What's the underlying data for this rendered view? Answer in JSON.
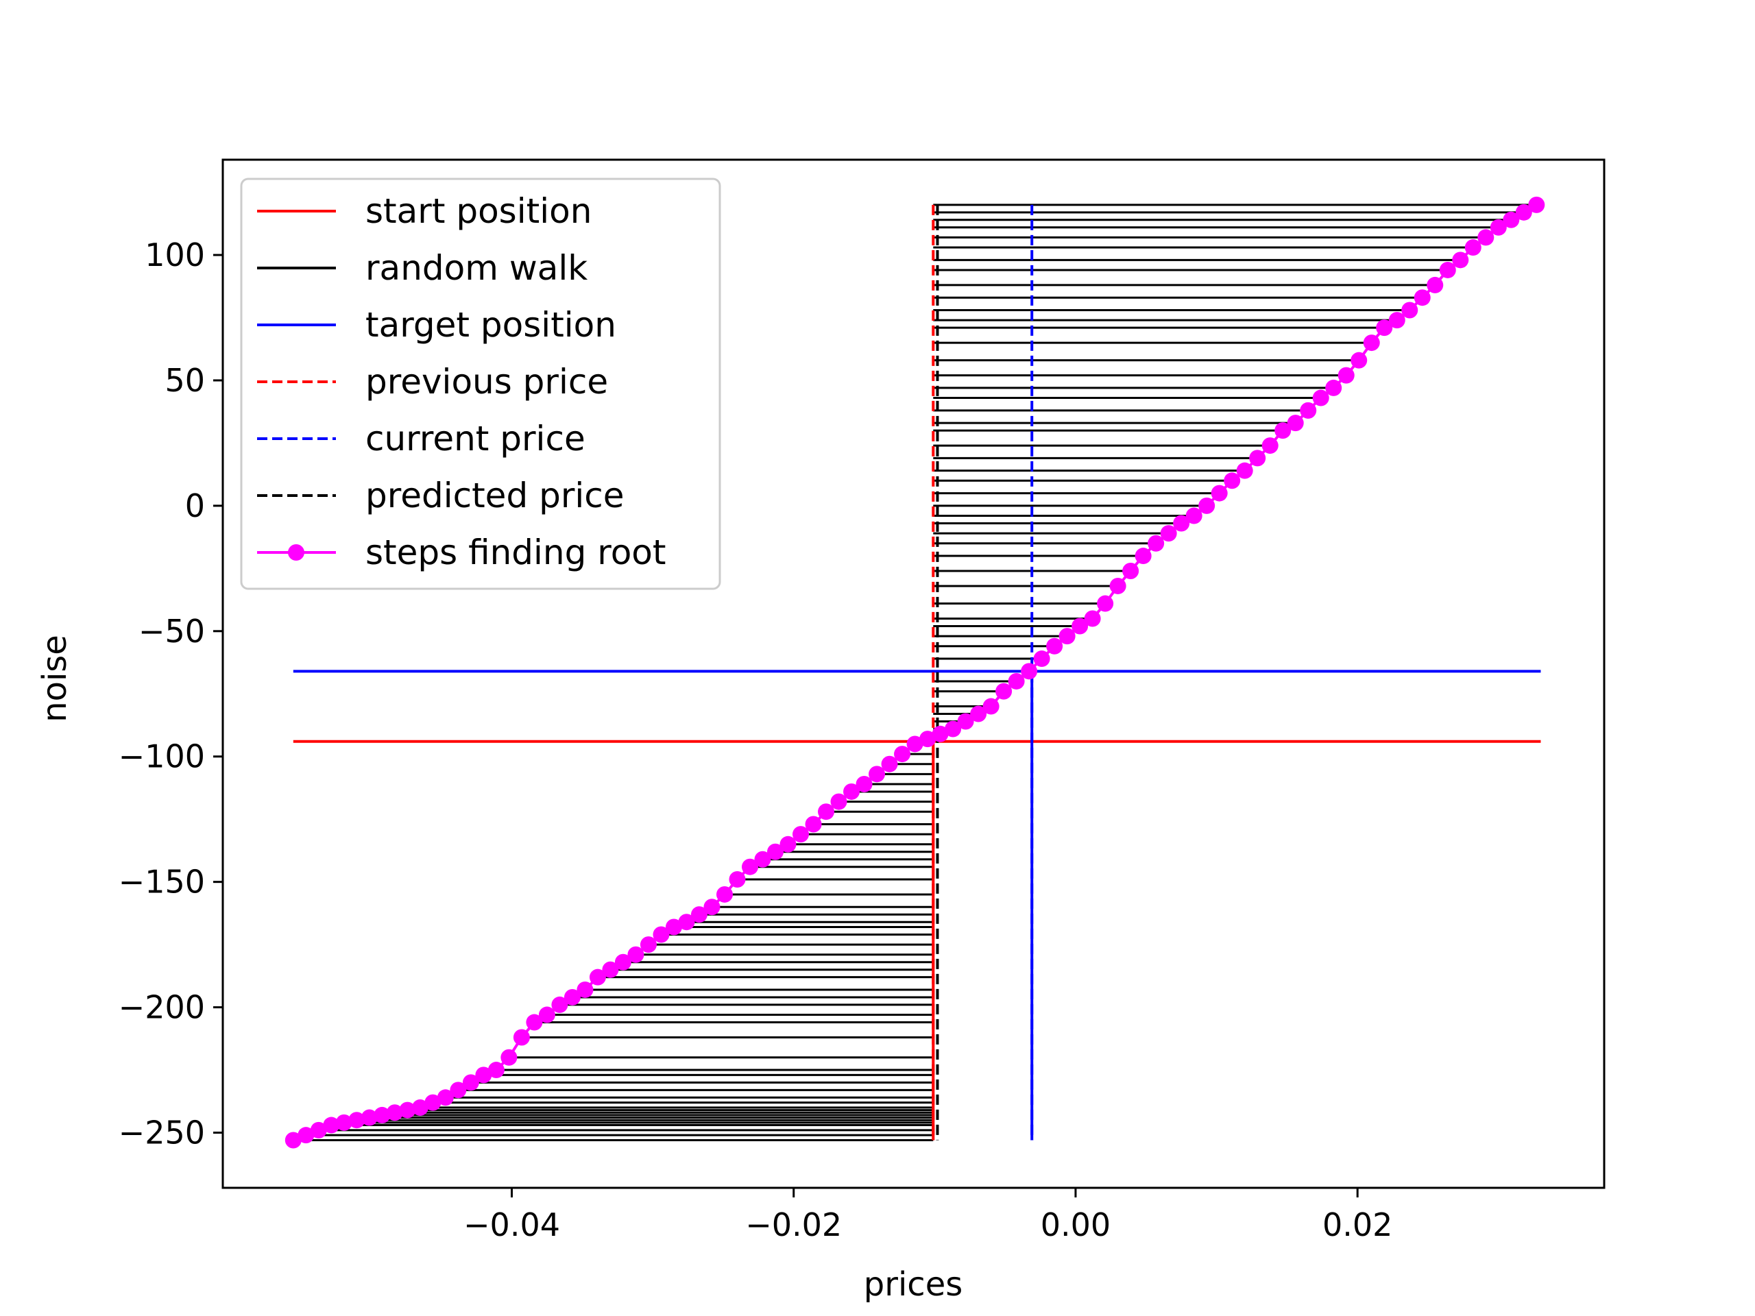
{
  "chart_data": {
    "type": "line",
    "title": "",
    "xlabel": "prices",
    "ylabel": "noise",
    "xlim": [
      -0.0605,
      0.0375
    ],
    "ylim": [
      -272,
      138
    ],
    "xticks": [
      -0.04,
      -0.02,
      0.0,
      0.02
    ],
    "xtick_labels": [
      "−0.04",
      "−0.02",
      "0.00",
      "0.02"
    ],
    "yticks": [
      -250,
      -200,
      -150,
      -100,
      -50,
      0,
      50,
      100
    ],
    "ytick_labels": [
      "−250",
      "−200",
      "−150",
      "−100",
      "−50",
      "0",
      "50",
      "100"
    ],
    "grid": false,
    "legend_position": "upper-left",
    "colors": {
      "start_position": "#ff0000",
      "random_walk": "#000000",
      "target_position": "#0000ff",
      "previous_price": "#ff0000",
      "current_price": "#0000ff",
      "predicted_price": "#000000",
      "steps_finding_root": "#ff00ff"
    },
    "legend": [
      {
        "key": "start_position",
        "label": "start position",
        "style": "solid"
      },
      {
        "key": "random_walk",
        "label": "random walk",
        "style": "solid"
      },
      {
        "key": "target_position",
        "label": "target position",
        "style": "solid"
      },
      {
        "key": "previous_price",
        "label": "previous price",
        "style": "dashed"
      },
      {
        "key": "current_price",
        "label": "current price",
        "style": "dashed"
      },
      {
        "key": "predicted_price",
        "label": "predicted price",
        "style": "dashed"
      },
      {
        "key": "steps_finding_root",
        "label": "steps finding root",
        "style": "marker-line"
      }
    ],
    "start_position": {
      "y": -94,
      "x_range": [
        -0.0555,
        0.033
      ]
    },
    "target_position": {
      "y": -66,
      "x_range": [
        -0.0555,
        0.033
      ]
    },
    "previous_price": {
      "x": -0.0101,
      "y_range": [
        -253,
        120
      ]
    },
    "current_price": {
      "x": -0.0031,
      "y_range": [
        -253,
        120
      ]
    },
    "predicted_price": {
      "x": -0.0098,
      "y_range": [
        -253,
        120
      ]
    },
    "random_walk_ref_x": -0.0101,
    "steps_finding_root": {
      "x": [
        -0.0555,
        -0.0546,
        -0.0537,
        -0.0528,
        -0.0519,
        -0.051,
        -0.0501,
        -0.0492,
        -0.0483,
        -0.0474,
        -0.0465,
        -0.0456,
        -0.0447,
        -0.0438,
        -0.0429,
        -0.042,
        -0.0411,
        -0.0402,
        -0.0393,
        -0.0384,
        -0.0375,
        -0.0366,
        -0.0357,
        -0.0348,
        -0.0339,
        -0.033,
        -0.0321,
        -0.0312,
        -0.0303,
        -0.0294,
        -0.0285,
        -0.0276,
        -0.0267,
        -0.0258,
        -0.0249,
        -0.024,
        -0.0231,
        -0.0222,
        -0.0213,
        -0.0204,
        -0.0195,
        -0.0186,
        -0.0177,
        -0.0168,
        -0.0159,
        -0.015,
        -0.0141,
        -0.0132,
        -0.0123,
        -0.0114,
        -0.0105,
        -0.0096,
        -0.0087,
        -0.0078,
        -0.0069,
        -0.006,
        -0.0051,
        -0.0042,
        -0.0033,
        -0.0024,
        -0.0015,
        -0.0006,
        0.0003,
        0.0012,
        0.0021,
        0.003,
        0.0039,
        0.0048,
        0.0057,
        0.0066,
        0.0075,
        0.0084,
        0.0093,
        0.0102,
        0.0111,
        0.012,
        0.0129,
        0.0138,
        0.0147,
        0.0156,
        0.0165,
        0.0174,
        0.0183,
        0.0192,
        0.0201,
        0.021,
        0.0219,
        0.0228,
        0.0237,
        0.0246,
        0.0255,
        0.0264,
        0.0273,
        0.0282,
        0.0291,
        0.03,
        0.0309,
        0.0318,
        0.0327
      ],
      "y": [
        -253,
        -251,
        -249,
        -247,
        -246,
        -245,
        -244,
        -243,
        -242,
        -241,
        -240,
        -238,
        -236,
        -233,
        -230,
        -227,
        -225,
        -220,
        -212,
        -206,
        -203,
        -199,
        -196,
        -193,
        -188,
        -185,
        -182,
        -179,
        -175,
        -171,
        -168,
        -166,
        -163,
        -160,
        -155,
        -149,
        -144,
        -141,
        -138,
        -135,
        -131,
        -127,
        -122,
        -118,
        -114,
        -111,
        -107,
        -103,
        -99,
        -95,
        -93,
        -91,
        -89,
        -86,
        -83,
        -80,
        -74,
        -70,
        -66,
        -61,
        -56,
        -52,
        -48,
        -45,
        -39,
        -32,
        -26,
        -20,
        -15,
        -11,
        -7,
        -4,
        0,
        5,
        10,
        14,
        19,
        24,
        30,
        33,
        38,
        43,
        47,
        52,
        58,
        65,
        71,
        74,
        78,
        83,
        88,
        94,
        98,
        103,
        107,
        111,
        114,
        117,
        120
      ]
    }
  }
}
